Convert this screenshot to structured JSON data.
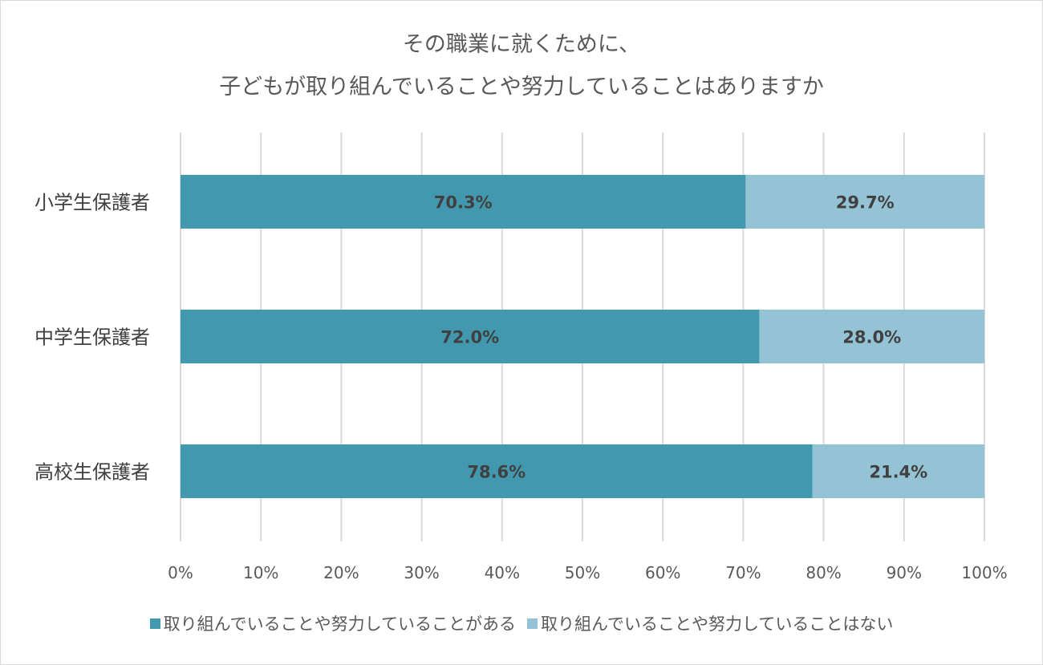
{
  "chart_data": {
    "type": "bar",
    "orientation": "horizontal",
    "stacked": true,
    "title_lines": [
      "その職業に就くために、",
      "子どもが取り組んでいることや努力していることはありますか"
    ],
    "categories": [
      "小学生保護者",
      "中学生保護者",
      "高校生保護者"
    ],
    "series": [
      {
        "name": "取り組んでいることや努力していることがある",
        "values": [
          70.3,
          72.0,
          78.6
        ],
        "labels": [
          "70.3%",
          "72.0%",
          "78.6%"
        ],
        "color": "#4298ae"
      },
      {
        "name": "取り組んでいることや努力していることはない",
        "values": [
          29.7,
          28.0,
          21.4
        ],
        "labels": [
          "29.7%",
          "28.0%",
          "21.4%"
        ],
        "color": "#93c3d4"
      }
    ],
    "xlim": [
      0,
      100
    ],
    "x_ticks": [
      "0%",
      "10%",
      "20%",
      "30%",
      "40%",
      "50%",
      "60%",
      "70%",
      "80%",
      "90%",
      "100%"
    ],
    "grid": true,
    "legend_position": "bottom"
  }
}
